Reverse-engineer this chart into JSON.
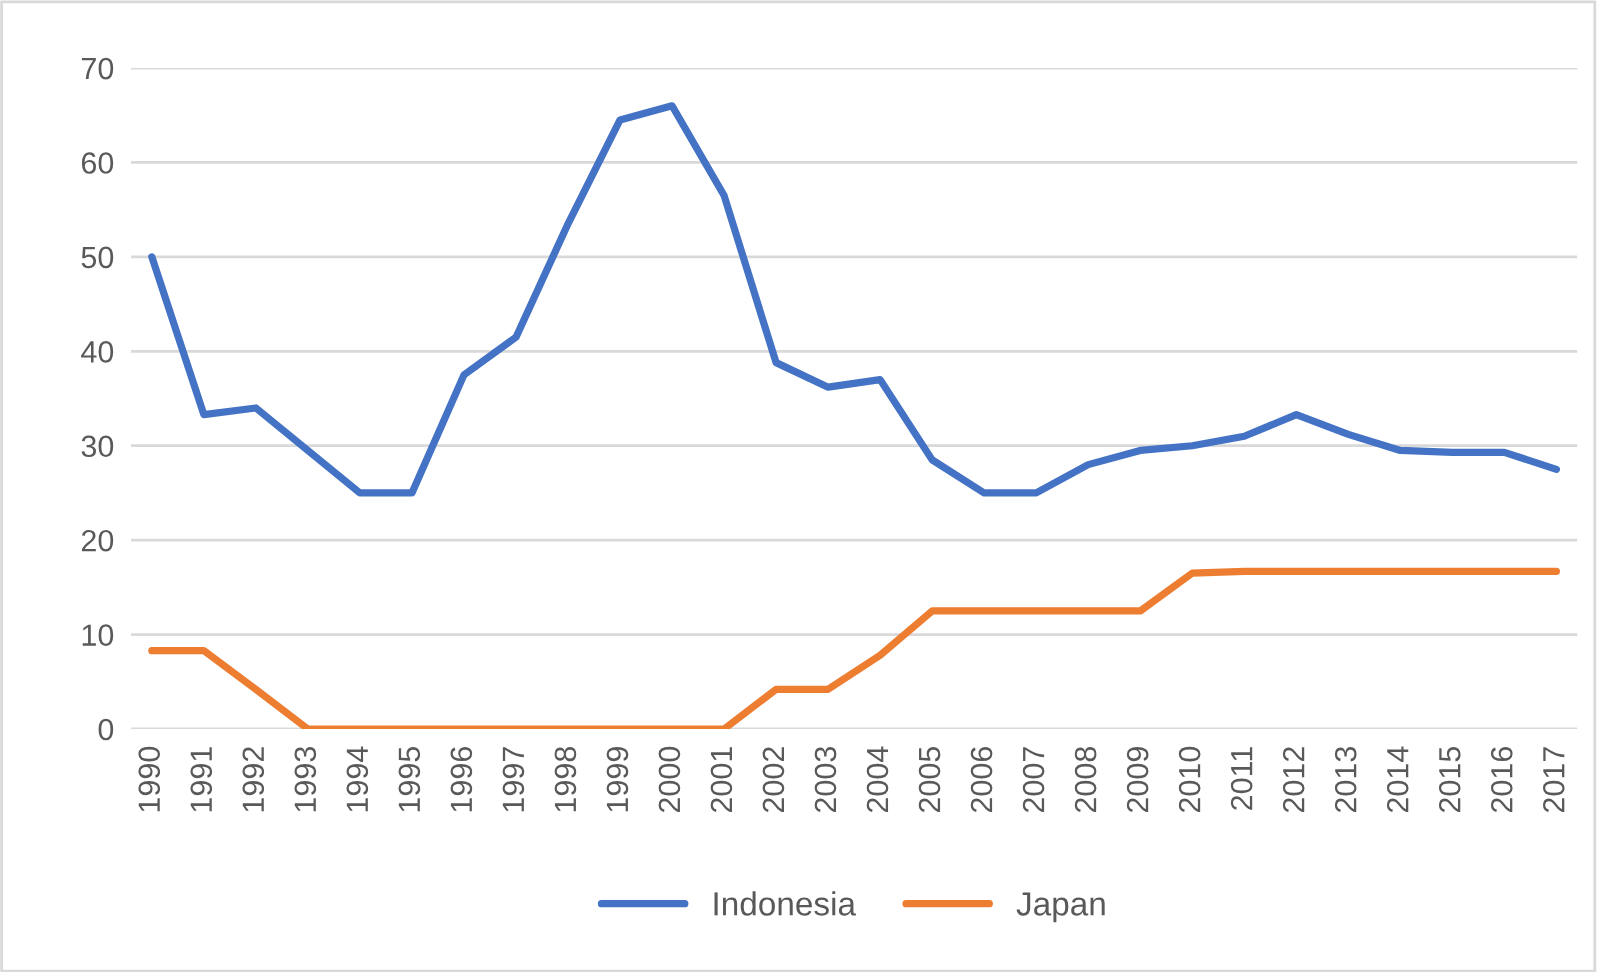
{
  "chart_data": {
    "type": "line",
    "categories": [
      "1990",
      "1991",
      "1992",
      "1993",
      "1994",
      "1995",
      "1996",
      "1997",
      "1998",
      "1999",
      "2000",
      "2001",
      "2002",
      "2003",
      "2004",
      "2005",
      "2006",
      "2007",
      "2008",
      "2009",
      "2010",
      "2011",
      "2012",
      "2013",
      "2014",
      "2015",
      "2016",
      "2017"
    ],
    "series": [
      {
        "name": "Indonesia",
        "color": "#4472c4",
        "values": [
          50,
          33.3,
          34,
          29.5,
          25,
          25,
          37.5,
          41.5,
          53.5,
          64.5,
          66,
          56.5,
          38.8,
          36.2,
          37,
          28.5,
          25,
          25,
          28,
          29.5,
          30,
          31,
          33.3,
          31.2,
          29.5,
          29.3,
          29.3,
          27.5
        ]
      },
      {
        "name": "Japan",
        "color": "#ed7d31",
        "values": [
          8.3,
          8.3,
          4.2,
          0,
          0,
          0,
          0,
          0,
          0,
          0,
          0,
          0,
          4.2,
          4.2,
          7.8,
          12.5,
          12.5,
          12.5,
          12.5,
          12.5,
          16.5,
          16.7,
          16.7,
          16.7,
          16.7,
          16.7,
          16.7,
          16.7
        ]
      }
    ],
    "ylim": [
      0,
      70
    ],
    "yticks": [
      0,
      10,
      20,
      30,
      40,
      50,
      60,
      70
    ],
    "grid": "y",
    "legend": "bottom",
    "marker": "none",
    "line_style": "solid"
  }
}
